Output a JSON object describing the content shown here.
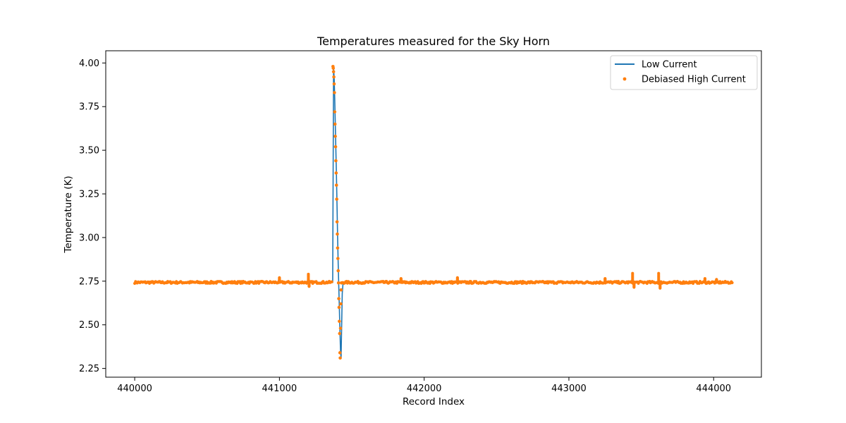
{
  "chart_data": {
    "type": "line",
    "title": "Temperatures measured for the Sky Horn",
    "xlabel": "Record Index",
    "ylabel": "Temperature (K)",
    "xlim": [
      439800,
      444330
    ],
    "ylim": [
      2.2,
      4.07
    ],
    "x_ticks": [
      440000,
      441000,
      442000,
      443000,
      444000
    ],
    "y_ticks": [
      2.25,
      2.5,
      2.75,
      3.0,
      3.25,
      3.5,
      3.75,
      4.0
    ],
    "x_tick_labels": [
      "440000",
      "441000",
      "442000",
      "443000",
      "444000"
    ],
    "y_tick_labels": [
      "2.25",
      "2.50",
      "2.75",
      "3.00",
      "3.25",
      "3.50",
      "3.75",
      "4.00"
    ],
    "grid": false,
    "legend": {
      "position": "top-right",
      "entries": [
        {
          "label": "Low Current",
          "kind": "line",
          "color": "#1f77b4"
        },
        {
          "label": "Debiased High Current",
          "kind": "scatter",
          "color": "#ff7f0e"
        }
      ]
    },
    "series": [
      {
        "name": "Low Current",
        "kind": "line",
        "color": "#1f77b4",
        "x": [
          440000,
          441368,
          441374,
          441378,
          441382,
          441386,
          441390,
          441394,
          441398,
          441402,
          441406,
          441410,
          441414,
          441418,
          441422,
          441426,
          441430,
          441434,
          441440,
          444130
        ],
        "y": [
          2.743,
          2.743,
          3.97,
          3.92,
          3.8,
          3.65,
          3.5,
          3.35,
          3.18,
          3.0,
          2.85,
          2.72,
          2.6,
          2.47,
          2.35,
          2.31,
          2.5,
          2.68,
          2.743,
          2.743
        ]
      },
      {
        "name": "Debiased High Current",
        "kind": "scatter",
        "color": "#ff7f0e",
        "x": [
          441370,
          441372,
          441374,
          441376,
          441378,
          441380,
          441382,
          441384,
          441386,
          441388,
          441390,
          441392,
          441394,
          441396,
          441398,
          441400,
          441402,
          441404,
          441406,
          441408,
          441410,
          441412,
          441414,
          441416,
          441418,
          441420,
          441422,
          441424,
          441426,
          441428
        ],
        "y": [
          3.98,
          3.97,
          3.95,
          3.92,
          3.88,
          3.83,
          3.72,
          3.65,
          3.58,
          3.52,
          3.44,
          3.37,
          3.3,
          3.22,
          3.09,
          3.02,
          2.94,
          2.88,
          2.81,
          2.74,
          2.65,
          2.6,
          2.52,
          2.45,
          2.34,
          2.31,
          2.48,
          2.62,
          2.7,
          2.74
        ],
        "baseline": 2.743,
        "baseline_noise": 0.006,
        "excursions": [
          {
            "x": 441200,
            "y": 2.79
          },
          {
            "x": 441205,
            "y": 2.72
          },
          {
            "x": 441000,
            "y": 2.77
          },
          {
            "x": 441840,
            "y": 2.765
          },
          {
            "x": 442230,
            "y": 2.77
          },
          {
            "x": 443250,
            "y": 2.765
          },
          {
            "x": 443440,
            "y": 2.795
          },
          {
            "x": 443450,
            "y": 2.715
          },
          {
            "x": 443620,
            "y": 2.795
          },
          {
            "x": 443630,
            "y": 2.71
          },
          {
            "x": 443940,
            "y": 2.765
          },
          {
            "x": 444020,
            "y": 2.76
          }
        ]
      }
    ]
  }
}
